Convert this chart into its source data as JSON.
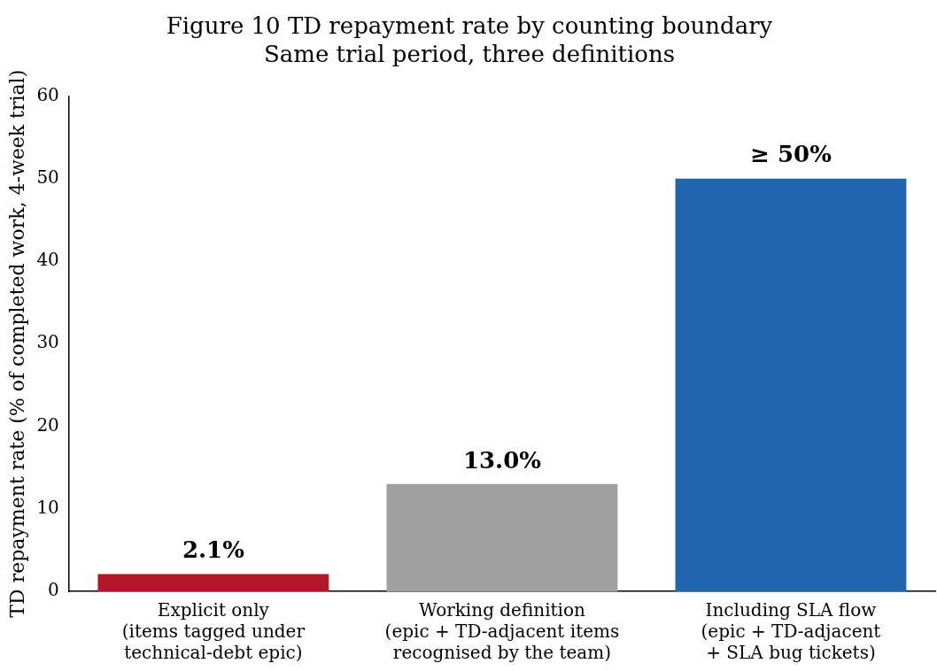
{
  "chart_data": {
    "type": "bar",
    "title": "Figure 10 TD repayment rate by counting boundary",
    "subtitle": "Same trial period, three definitions",
    "ylabel": "TD repayment rate (% of completed work, 4-week trial)",
    "categories": [
      "Explicit only\n(items tagged under\ntechnical-debt epic)",
      "Working definition\n(epic + TD-adjacent items\nrecognised by the team)",
      "Including SLA flow\n(epic + TD-adjacent\n+ SLA bug tickets)"
    ],
    "values": [
      2.1,
      13.0,
      50
    ],
    "colors": [
      "#b2182b",
      "#a0a0a0",
      "#2166ac"
    ],
    "value_labels": [
      "2.1%",
      "13.0%",
      "≥ 50%"
    ],
    "ylim": [
      0,
      60
    ],
    "yticks": [
      0,
      10,
      20,
      30,
      40,
      50,
      60
    ],
    "grid": false,
    "legend": false
  }
}
